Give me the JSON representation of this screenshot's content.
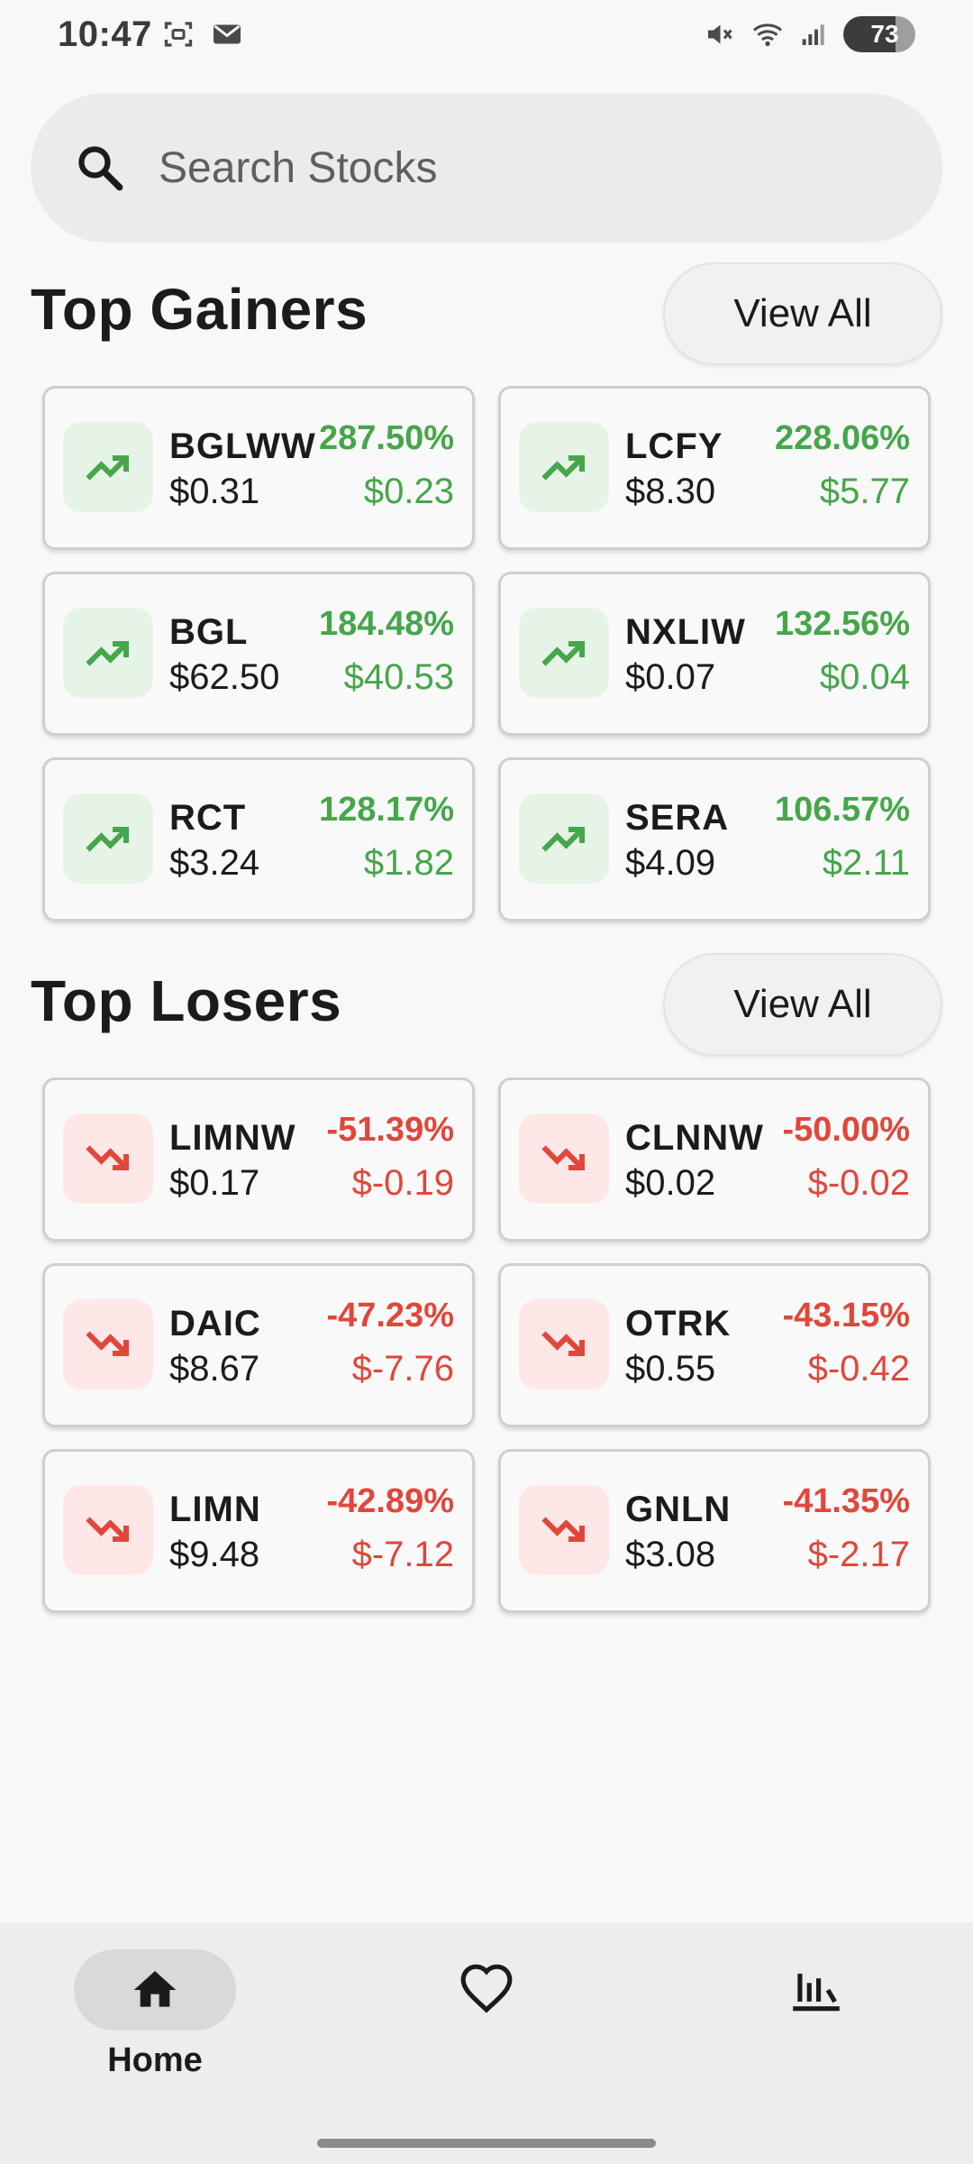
{
  "status_bar": {
    "time": "10:47",
    "battery": "73",
    "battery_level": 0.73
  },
  "search": {
    "placeholder": "Search Stocks",
    "icon": "search-icon"
  },
  "gainers": {
    "title": "Top Gainers",
    "view_all": "View All",
    "items": [
      {
        "symbol": "BGLWW",
        "price": "$0.31",
        "percent": "287.50%",
        "change": "$0.23"
      },
      {
        "symbol": "LCFY",
        "price": "$8.30",
        "percent": "228.06%",
        "change": "$5.77"
      },
      {
        "symbol": "BGL",
        "price": "$62.50",
        "percent": "184.48%",
        "change": "$40.53"
      },
      {
        "symbol": "NXLIW",
        "price": "$0.07",
        "percent": "132.56%",
        "change": "$0.04"
      },
      {
        "symbol": "RCT",
        "price": "$3.24",
        "percent": "128.17%",
        "change": "$1.82"
      },
      {
        "symbol": "SERA",
        "price": "$4.09",
        "percent": "106.57%",
        "change": "$2.11"
      }
    ]
  },
  "losers": {
    "title": "Top Losers",
    "view_all": "View All",
    "items": [
      {
        "symbol": "LIMNW",
        "price": "$0.17",
        "percent": "-51.39%",
        "change": "$-0.19"
      },
      {
        "symbol": "CLNNW",
        "price": "$0.02",
        "percent": "-50.00%",
        "change": "$-0.02"
      },
      {
        "symbol": "DAIC",
        "price": "$8.67",
        "percent": "-47.23%",
        "change": "$-7.76"
      },
      {
        "symbol": "OTRK",
        "price": "$0.55",
        "percent": "-43.15%",
        "change": "$-0.42"
      },
      {
        "symbol": "LIMN",
        "price": "$9.48",
        "percent": "-42.89%",
        "change": "$-7.12"
      },
      {
        "symbol": "GNLN",
        "price": "$3.08",
        "percent": "-41.35%",
        "change": "$-2.17"
      }
    ]
  },
  "colors": {
    "gain": "#45a64a",
    "loss": "#e0473b"
  },
  "bottom_nav": {
    "home_label": "Home",
    "items": [
      "home-icon",
      "heart-icon",
      "chart-icon"
    ]
  }
}
